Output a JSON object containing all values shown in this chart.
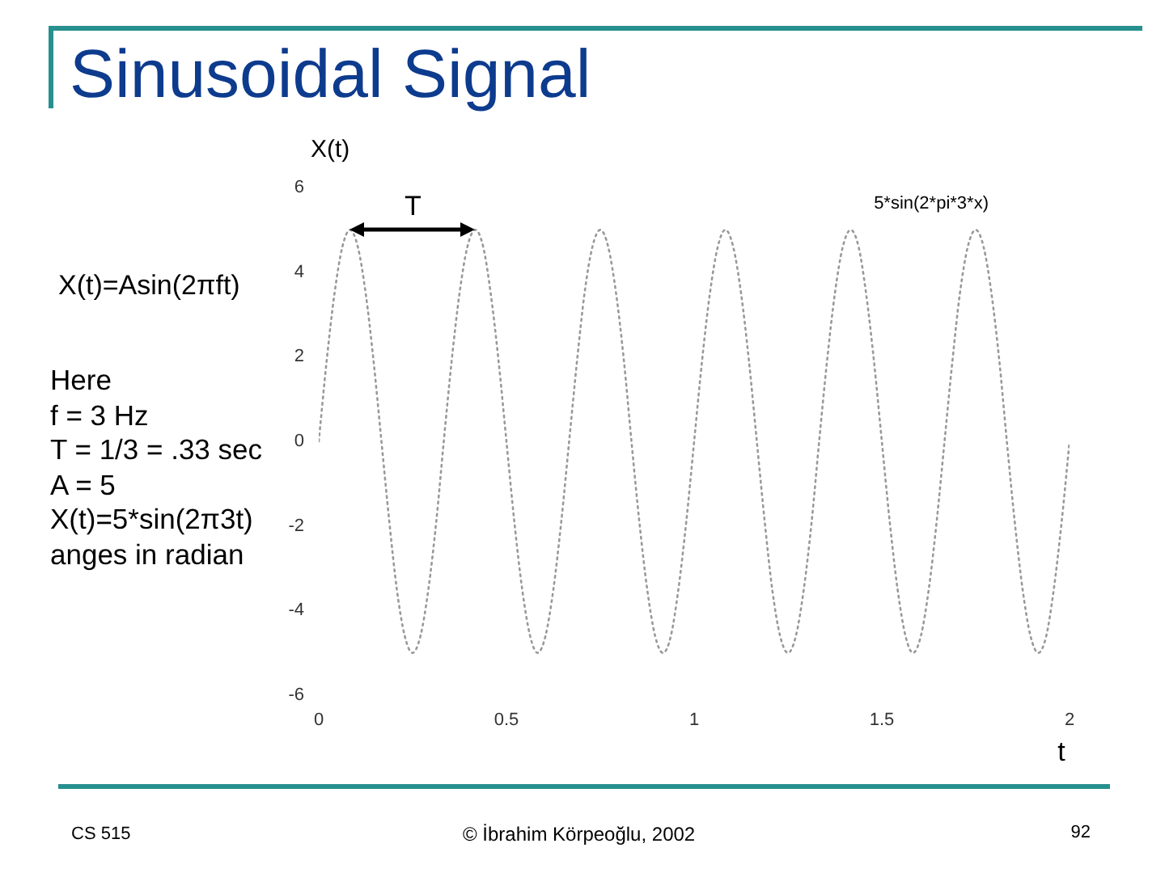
{
  "chart_data": {
    "type": "line",
    "title": "Sinusoidal Signal",
    "xlabel": "t",
    "ylabel": "X(t)",
    "annotations": [
      "X(t)=Asin(2πft)",
      "Here\nf = 3 Hz\nT = 1/3 = .33 sec\nA = 5\nX(t)=5*sin(2π3t)\nanges in radian",
      "T",
      "CS 515",
      "© İbrahim Körpeoğlu, 2002",
      "92"
    ],
    "x": [
      0,
      0.021,
      0.042,
      0.063,
      0.083,
      0.104,
      0.125,
      0.146,
      0.167,
      0.188,
      0.208,
      0.229,
      0.25,
      0.271,
      0.292,
      0.313,
      0.333,
      0.354,
      0.375,
      0.396,
      0.417,
      0.438,
      0.458,
      0.479,
      0.5,
      0.521,
      0.542,
      0.563,
      0.583,
      0.604,
      0.625,
      0.646,
      0.667,
      0.688,
      0.708,
      0.729,
      0.75,
      0.771,
      0.792,
      0.813,
      0.833,
      0.854,
      0.875,
      0.896,
      0.917,
      0.938,
      0.958,
      0.979,
      1,
      1.021,
      1.042,
      1.063,
      1.083,
      1.104,
      1.125,
      1.146,
      1.167,
      1.188,
      1.208,
      1.229,
      1.25,
      1.271,
      1.292,
      1.313,
      1.333,
      1.354,
      1.375,
      1.396,
      1.417,
      1.438,
      1.458,
      1.479,
      1.5,
      1.521,
      1.542,
      1.563,
      1.583,
      1.604,
      1.625,
      1.646,
      1.667,
      1.688,
      1.708,
      1.729,
      1.75,
      1.771,
      1.792,
      1.813,
      1.833,
      1.854,
      1.875,
      1.896,
      1.917,
      1.938,
      1.958,
      1.979,
      2
    ],
    "series": [
      {
        "name": "5*sin(2*pi*3*x)",
        "color": "#999999",
        "values": [
          0,
          1.9,
          3.5,
          4.6,
          5,
          4.6,
          3.5,
          1.9,
          0,
          -1.9,
          -3.5,
          -4.6,
          -5,
          -4.6,
          -3.5,
          -1.9,
          0,
          1.9,
          3.5,
          4.6,
          5,
          4.6,
          3.5,
          1.9,
          0,
          -1.9,
          -3.5,
          -4.6,
          -5,
          -4.6,
          -3.5,
          -1.9,
          0,
          1.9,
          3.5,
          4.6,
          5,
          4.6,
          3.5,
          1.9,
          0,
          -1.9,
          -3.5,
          -4.6,
          -5,
          -4.6,
          -3.5,
          -1.9,
          0,
          1.9,
          3.5,
          4.6,
          5,
          4.6,
          3.5,
          1.9,
          0,
          -1.9,
          -3.5,
          -4.6,
          -5,
          -4.6,
          -3.5,
          -1.9,
          0,
          1.9,
          3.5,
          4.6,
          5,
          4.6,
          3.5,
          1.9,
          0,
          -1.9,
          -3.5,
          -4.6,
          -5,
          -4.6,
          -3.5,
          -1.9,
          0,
          1.9,
          3.5,
          4.6,
          5,
          4.6,
          3.5,
          1.9,
          0,
          -1.9,
          -3.5,
          -4.6,
          -5,
          -4.6,
          -3.5,
          -1.9,
          0
        ]
      }
    ],
    "xlim": [
      0,
      2
    ],
    "xticks": [
      0,
      0.5,
      1,
      1.5,
      2
    ],
    "ylim": [
      -6,
      6
    ],
    "yticks": [
      -6,
      -4,
      -2,
      0,
      2,
      4,
      6
    ],
    "marker": "none",
    "line_style": "dotted"
  }
}
